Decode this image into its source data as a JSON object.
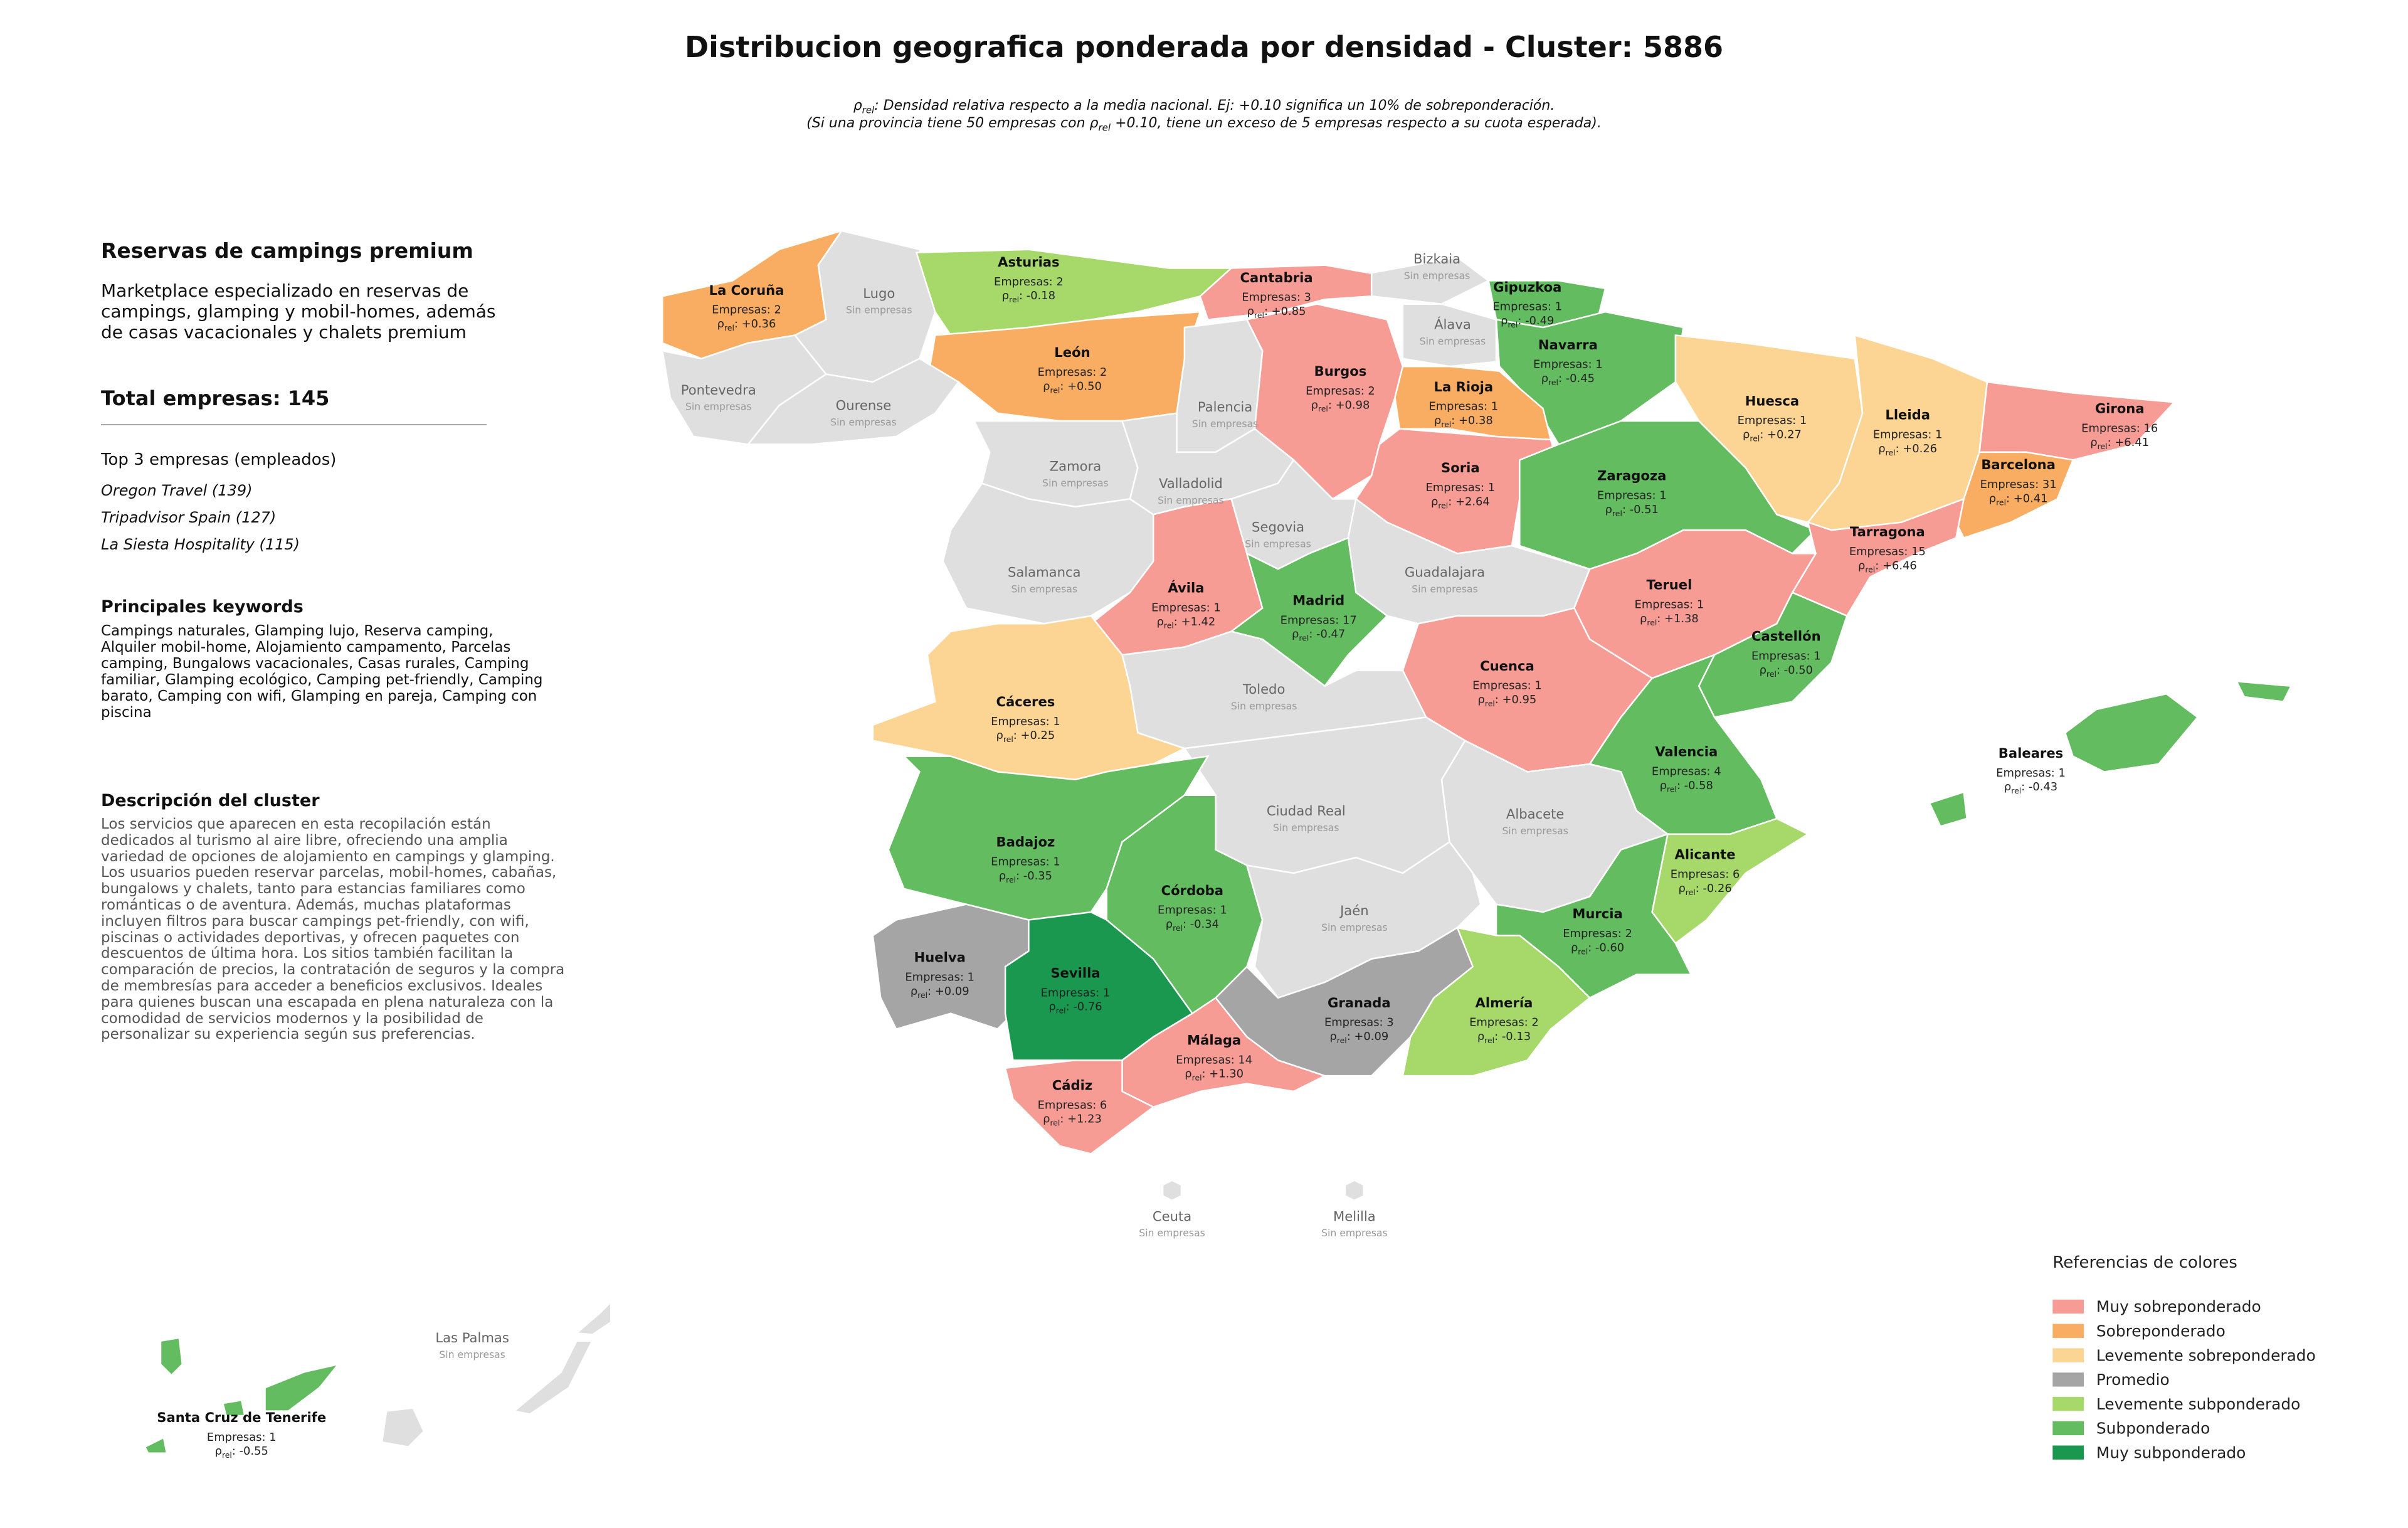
{
  "title": "Distribucion geografica ponderada por densidad - Cluster: 5886",
  "subtitle": [
    {
      "pre": "ρ",
      "sub": "rel",
      "post": ": Densidad relativa respecto a la media nacional. Ej: +0.10 significa un 10% de sobreponderación."
    },
    {
      "pre": "(Si una provincia tiene 50 empresas con ρ",
      "sub": "rel",
      "post": " +0.10, tiene un exceso de 5 empresas respecto a su cuota esperada)."
    }
  ],
  "panel": {
    "heading": "Reservas de campings premium",
    "summary": "Marketplace especializado en reservas de campings, glamping y mobil-homes, además de casas vacacionales y chalets premium",
    "total": "Total empresas: 145",
    "top_title": "Top 3 empresas (empleados)",
    "top": [
      "Oregon Travel (139)",
      "Tripadvisor Spain (127)",
      "La Siesta Hospitality (115)"
    ],
    "keywords_title": "Principales keywords",
    "keywords": "Campings naturales, Glamping lujo, Reserva camping, Alquiler mobil-home, Alojamiento campamento, Parcelas camping, Bungalows vacacionales, Casas rurales, Camping familiar, Glamping ecológico, Camping pet-friendly, Camping barato, Camping con wifi, Glamping en pareja, Camping con piscina",
    "description_title": "Descripción del cluster",
    "description": "Los servicios que aparecen en esta recopilación están dedicados al turismo al aire libre, ofreciendo una amplia variedad de opciones de alojamiento en campings y glamping. Los usuarios pueden reservar parcelas, mobil-homes, cabañas, bungalows y chalets, tanto para estancias familiares como románticas o de aventura. Además, muchas plataformas incluyen filtros para buscar campings pet-friendly, con wifi, piscinas o actividades deportivas, y ofrecen paquetes con descuentos de última hora. Los sitios también facilitan la comparación de precios, la contratación de seguros y la compra de membresías para acceder a beneficios exclusivos. Ideales para quienes buscan una escapada en plena naturaleza con la comodidad de servicios modernos y la posibilidad de personalizar su experiencia según sus preferencias."
  },
  "map": {
    "empresas_label": "Empresas:",
    "rho_symbol": "ρ",
    "rho_subscript": "rel",
    "separator": ":",
    "no_companies_label": "Sin empresas",
    "no_data_color": "#dfdfdf",
    "legend": {
      "title": "Referencias de colores",
      "items": [
        {
          "name": "Muy sobreponderado",
          "color": "#f79b95"
        },
        {
          "name": "Sobreponderado",
          "color": "#f8ad62"
        },
        {
          "name": "Levemente sobreponderado",
          "color": "#fcd595"
        },
        {
          "name": "Promedio",
          "color": "#a5a5a5"
        },
        {
          "name": "Levemente subponderado",
          "color": "#a6d96a"
        },
        {
          "name": "Subponderado",
          "color": "#64bc61"
        },
        {
          "name": "Muy subponderado",
          "color": "#1a9850"
        }
      ]
    },
    "provinces": [
      {
        "name": "La Coruña",
        "empresas": 2,
        "rho": {
          "value": 0.36,
          "label": "+0.36"
        },
        "category": "Sobreponderado"
      },
      {
        "name": "Lugo"
      },
      {
        "name": "Asturias",
        "empresas": 2,
        "rho": {
          "value": -0.18,
          "label": "-0.18"
        },
        "category": "Levemente subponderado"
      },
      {
        "name": "Cantabria",
        "empresas": 3,
        "rho": {
          "value": 0.85,
          "label": "+0.85"
        },
        "category": "Muy sobreponderado"
      },
      {
        "name": "Bizkaia"
      },
      {
        "name": "Gipuzkoa",
        "empresas": 1,
        "rho": {
          "value": -0.49,
          "label": "-0.49"
        },
        "category": "Subponderado"
      },
      {
        "name": "Álava"
      },
      {
        "name": "Navarra",
        "empresas": 1,
        "rho": {
          "value": -0.45,
          "label": "-0.45"
        },
        "category": "Subponderado"
      },
      {
        "name": "León",
        "empresas": 2,
        "rho": {
          "value": 0.5,
          "label": "+0.50"
        },
        "category": "Sobreponderado"
      },
      {
        "name": "Burgos",
        "empresas": 2,
        "rho": {
          "value": 0.98,
          "label": "+0.98"
        },
        "category": "Muy sobreponderado"
      },
      {
        "name": "La Rioja",
        "empresas": 1,
        "rho": {
          "value": 0.38,
          "label": "+0.38"
        },
        "category": "Sobreponderado"
      },
      {
        "name": "Pontevedra"
      },
      {
        "name": "Ourense"
      },
      {
        "name": "Palencia"
      },
      {
        "name": "Huesca",
        "empresas": 1,
        "rho": {
          "value": 0.27,
          "label": "+0.27"
        },
        "category": "Levemente sobreponderado"
      },
      {
        "name": "Lleida",
        "empresas": 1,
        "rho": {
          "value": 0.26,
          "label": "+0.26"
        },
        "category": "Levemente sobreponderado"
      },
      {
        "name": "Girona",
        "empresas": 16,
        "rho": {
          "value": 6.41,
          "label": "+6.41"
        },
        "category": "Muy sobreponderado"
      },
      {
        "name": "Zamora"
      },
      {
        "name": "Soria",
        "empresas": 1,
        "rho": {
          "value": 2.64,
          "label": "+2.64"
        },
        "category": "Muy sobreponderado"
      },
      {
        "name": "Zaragoza",
        "empresas": 1,
        "rho": {
          "value": -0.51,
          "label": "-0.51"
        },
        "category": "Subponderado"
      },
      {
        "name": "Barcelona",
        "empresas": 31,
        "rho": {
          "value": 0.41,
          "label": "+0.41"
        },
        "category": "Sobreponderado"
      },
      {
        "name": "Valladolid"
      },
      {
        "name": "Segovia"
      },
      {
        "name": "Tarragona",
        "empresas": 15,
        "rho": {
          "value": 6.46,
          "label": "+6.46"
        },
        "category": "Muy sobreponderado"
      },
      {
        "name": "Salamanca"
      },
      {
        "name": "Guadalajara"
      },
      {
        "name": "Ávila",
        "empresas": 1,
        "rho": {
          "value": 1.42,
          "label": "+1.42"
        },
        "category": "Muy sobreponderado"
      },
      {
        "name": "Madrid",
        "empresas": 17,
        "rho": {
          "value": -0.47,
          "label": "-0.47"
        },
        "category": "Subponderado"
      },
      {
        "name": "Teruel",
        "empresas": 1,
        "rho": {
          "value": 1.38,
          "label": "+1.38"
        },
        "category": "Muy sobreponderado"
      },
      {
        "name": "Castellón",
        "empresas": 1,
        "rho": {
          "value": -0.5,
          "label": "-0.50"
        },
        "category": "Subponderado"
      },
      {
        "name": "Cuenca",
        "empresas": 1,
        "rho": {
          "value": 0.95,
          "label": "+0.95"
        },
        "category": "Muy sobreponderado"
      },
      {
        "name": "Toledo"
      },
      {
        "name": "Cáceres",
        "empresas": 1,
        "rho": {
          "value": 0.25,
          "label": "+0.25"
        },
        "category": "Levemente sobreponderado"
      },
      {
        "name": "Baleares",
        "empresas": 1,
        "rho": {
          "value": -0.43,
          "label": "-0.43"
        },
        "category": "Subponderado"
      },
      {
        "name": "Valencia",
        "empresas": 4,
        "rho": {
          "value": -0.58,
          "label": "-0.58"
        },
        "category": "Subponderado"
      },
      {
        "name": "Ciudad Real"
      },
      {
        "name": "Albacete"
      },
      {
        "name": "Badajoz",
        "empresas": 1,
        "rho": {
          "value": -0.35,
          "label": "-0.35"
        },
        "category": "Subponderado"
      },
      {
        "name": "Alicante",
        "empresas": 6,
        "rho": {
          "value": -0.26,
          "label": "-0.26"
        },
        "category": "Levemente subponderado"
      },
      {
        "name": "Córdoba",
        "empresas": 1,
        "rho": {
          "value": -0.34,
          "label": "-0.34"
        },
        "category": "Subponderado"
      },
      {
        "name": "Jaén"
      },
      {
        "name": "Murcia",
        "empresas": 2,
        "rho": {
          "value": -0.6,
          "label": "-0.60"
        },
        "category": "Subponderado"
      },
      {
        "name": "Huelva",
        "empresas": 1,
        "rho": {
          "value": 0.09,
          "label": "+0.09"
        },
        "category": "Promedio"
      },
      {
        "name": "Sevilla",
        "empresas": 1,
        "rho": {
          "value": -0.76,
          "label": "-0.76"
        },
        "category": "Muy subponderado"
      },
      {
        "name": "Granada",
        "empresas": 3,
        "rho": {
          "value": 0.09,
          "label": "+0.09"
        },
        "category": "Promedio"
      },
      {
        "name": "Almería",
        "empresas": 2,
        "rho": {
          "value": -0.13,
          "label": "-0.13"
        },
        "category": "Levemente subponderado"
      },
      {
        "name": "Málaga",
        "empresas": 14,
        "rho": {
          "value": 1.3,
          "label": "+1.30"
        },
        "category": "Muy sobreponderado"
      },
      {
        "name": "Cádiz",
        "empresas": 6,
        "rho": {
          "value": 1.23,
          "label": "+1.23"
        },
        "category": "Muy sobreponderado"
      },
      {
        "name": "Ceuta"
      },
      {
        "name": "Melilla"
      },
      {
        "name": "Las Palmas"
      },
      {
        "name": "Santa Cruz de Tenerife",
        "empresas": 1,
        "rho": {
          "value": -0.55,
          "label": "-0.55"
        },
        "category": "Subponderado"
      }
    ]
  }
}
